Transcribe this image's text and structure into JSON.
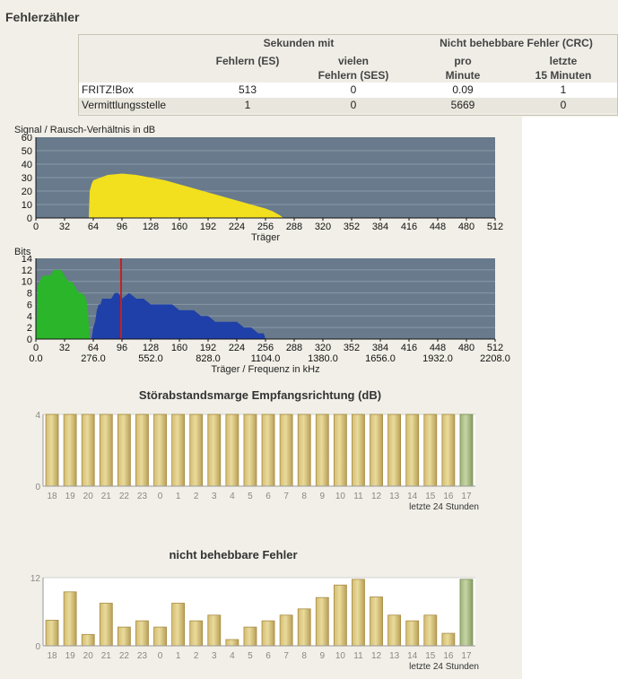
{
  "page_title": "Fehlerzähler",
  "error_table": {
    "group_headers": [
      "Sekunden mit",
      "Nicht behebbare Fehler (CRC)"
    ],
    "columns": [
      {
        "line1": "Fehlern (ES)",
        "line2": ""
      },
      {
        "line1": "vielen",
        "line2": "Fehlern (SES)"
      },
      {
        "line1": "pro",
        "line2": "Minute"
      },
      {
        "line1": "letzte",
        "line2": "15 Minuten"
      }
    ],
    "rows": [
      {
        "label": "FRITZ!Box",
        "values": [
          "513",
          "0",
          "0.09",
          "1"
        ]
      },
      {
        "label": "Vermittlungsstelle",
        "values": [
          "1",
          "0",
          "5669",
          "0"
        ]
      }
    ]
  },
  "chart_data": [
    {
      "type": "area",
      "title": "Signal / Rausch-Verhältnis in dB",
      "xlabel": "Träger",
      "xlim": [
        0,
        512
      ],
      "ylim": [
        0,
        60
      ],
      "xticks": [
        "0",
        "32",
        "64",
        "96",
        "128",
        "160",
        "192",
        "224",
        "256",
        "288",
        "320",
        "352",
        "384",
        "416",
        "448",
        "480",
        "512"
      ],
      "yticks": [
        "0",
        "10",
        "20",
        "30",
        "40",
        "50",
        "60"
      ],
      "series": [
        {
          "color": "#f2df1e",
          "x": [
            59,
            60,
            62,
            64,
            72,
            80,
            96,
            112,
            128,
            144,
            160,
            176,
            192,
            208,
            224,
            240,
            256,
            264,
            272,
            276
          ],
          "y": [
            0,
            20,
            25,
            28,
            30,
            32,
            33,
            32,
            30,
            28,
            25,
            22,
            19,
            16,
            13,
            10,
            7,
            5,
            2,
            0
          ]
        }
      ]
    },
    {
      "type": "area",
      "title": "Bits",
      "xlabel": "Träger / Frequenz in kHz",
      "xlim": [
        0,
        512
      ],
      "ylim": [
        0,
        14
      ],
      "xticks": [
        "0",
        "32",
        "64",
        "96",
        "128",
        "160",
        "192",
        "224",
        "256",
        "288",
        "320",
        "352",
        "384",
        "416",
        "448",
        "480",
        "512"
      ],
      "freq_ticks": [
        "0.0",
        "276.0",
        "552.0",
        "828.0",
        "1104.0",
        "1380.0",
        "1656.0",
        "1932.0",
        "2208.0"
      ],
      "yticks": [
        "0",
        "2",
        "4",
        "6",
        "8",
        "10",
        "12",
        "14"
      ],
      "marker_x": 95,
      "series": [
        {
          "color": "#2ab52a",
          "x": [
            0,
            2,
            4,
            8,
            12,
            16,
            20,
            24,
            28,
            32,
            36,
            40,
            44,
            48,
            52,
            56,
            58,
            60
          ],
          "y": [
            0,
            9,
            10,
            11,
            11,
            11,
            12,
            12,
            12,
            11,
            10,
            10,
            9,
            8,
            8,
            7,
            5,
            0
          ]
        },
        {
          "color": "#1f40a8",
          "x": [
            62,
            64,
            66,
            68,
            70,
            72,
            74,
            76,
            80,
            84,
            88,
            92,
            96,
            104,
            112,
            120,
            128,
            136,
            144,
            152,
            160,
            168,
            176,
            184,
            192,
            200,
            208,
            216,
            224,
            232,
            240,
            248,
            252,
            254,
            256
          ],
          "y": [
            0,
            2,
            3,
            5,
            6,
            6,
            7,
            7,
            7,
            7,
            8,
            8,
            7,
            8,
            7,
            7,
            6,
            6,
            6,
            6,
            5,
            5,
            5,
            4,
            4,
            3,
            3,
            3,
            3,
            2,
            2,
            1,
            1,
            1,
            0
          ]
        }
      ]
    },
    {
      "type": "bar",
      "title": "Störabstandsmarge Empfangsrichtung (dB)",
      "categories": [
        "18",
        "19",
        "20",
        "21",
        "22",
        "23",
        "0",
        "1",
        "2",
        "3",
        "4",
        "5",
        "6",
        "7",
        "8",
        "9",
        "10",
        "11",
        "12",
        "13",
        "14",
        "15",
        "16",
        "17"
      ],
      "values": [
        4,
        4,
        4,
        4,
        4,
        4,
        4,
        4,
        4,
        4,
        4,
        4,
        4,
        4,
        4,
        4,
        4,
        4,
        4,
        4,
        4,
        4,
        4,
        4
      ],
      "ylim": [
        0,
        4
      ],
      "yticks": [
        "0",
        "4"
      ],
      "xlabel": "letzte 24 Stunden",
      "highlight_last": true
    },
    {
      "type": "bar",
      "title": "nicht behebbare Fehler",
      "categories": [
        "18",
        "19",
        "20",
        "21",
        "22",
        "23",
        "0",
        "1",
        "2",
        "3",
        "4",
        "5",
        "6",
        "7",
        "8",
        "9",
        "10",
        "11",
        "12",
        "13",
        "14",
        "15",
        "16",
        "17"
      ],
      "values": [
        4.5,
        9.5,
        2,
        7.5,
        3.3,
        4.4,
        3.3,
        7.5,
        4.4,
        5.4,
        1.1,
        3.3,
        4.4,
        5.4,
        6.5,
        8.5,
        10.7,
        11.7,
        8.6,
        5.4,
        4.4,
        5.4,
        2.2,
        11.7
      ],
      "ylim": [
        0,
        12
      ],
      "yticks": [
        "0",
        "12"
      ],
      "xlabel": "letzte 24 Stunden",
      "highlight_last": true
    }
  ]
}
